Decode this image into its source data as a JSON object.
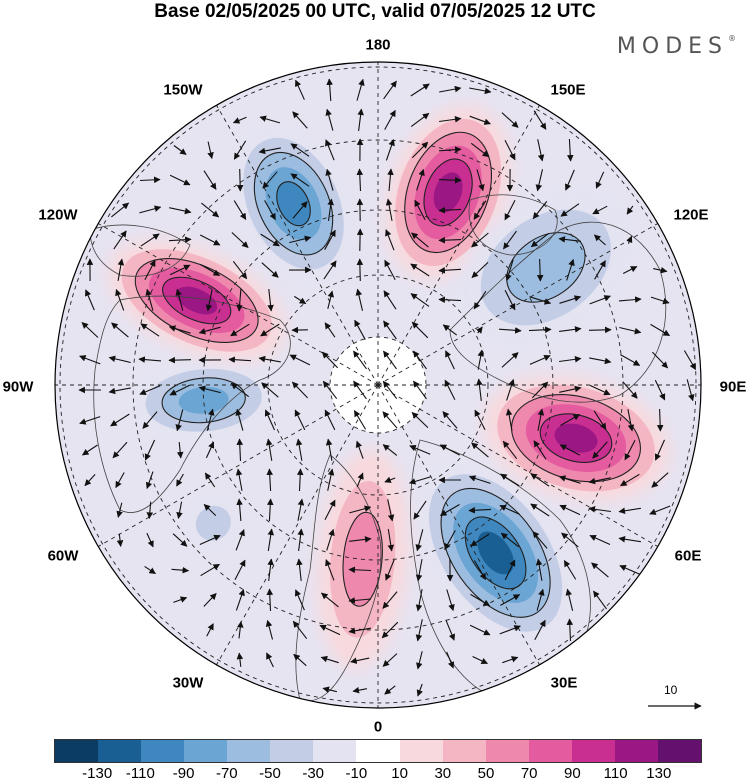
{
  "title": "Base 02/05/2025 00 UTC, valid 07/05/2025 12 UTC",
  "brand": "MODES",
  "brand_mark": "®",
  "longitude_labels": {
    "deg180": "180",
    "e150": "150E",
    "e120": "120E",
    "e90": "90E",
    "e60": "60E",
    "e30": "30E",
    "deg0": "0",
    "w30": "30W",
    "w60": "60W",
    "w90": "90W",
    "w120": "120W",
    "w150": "150W"
  },
  "vector_legend": {
    "value": "10"
  },
  "colorbar": {
    "colors": [
      "#0b3c63",
      "#1a5f93",
      "#3e88bf",
      "#6aa5d3",
      "#9dbde0",
      "#c4cde6",
      "#e4e3f1",
      "#ffffff",
      "#f8d9dd",
      "#f5b6c4",
      "#ee89ad",
      "#e45ba0",
      "#c92e91",
      "#9a1784",
      "#64106f"
    ],
    "ticks": [
      "-130",
      "-110",
      "-90",
      "-70",
      "-50",
      "-30",
      "-10",
      "10",
      "30",
      "50",
      "70",
      "90",
      "110",
      "130"
    ]
  },
  "map": {
    "projection": "north-polar-stereographic",
    "field": "anomaly",
    "centers": [
      {
        "lon": 160,
        "value": 120,
        "sign": "positive"
      },
      {
        "lon": -155,
        "value": -90,
        "sign": "negative"
      },
      {
        "lon": -115,
        "value": 115,
        "sign": "positive"
      },
      {
        "lon": 125,
        "value": -60,
        "sign": "negative"
      },
      {
        "lon": 75,
        "value": 125,
        "sign": "positive"
      },
      {
        "lon": 35,
        "value": -110,
        "sign": "negative"
      },
      {
        "lon": -5,
        "value": 60,
        "sign": "positive"
      },
      {
        "lon": -85,
        "value": -70,
        "sign": "negative"
      },
      {
        "lon": -50,
        "value": -30,
        "sign": "negative"
      }
    ]
  }
}
